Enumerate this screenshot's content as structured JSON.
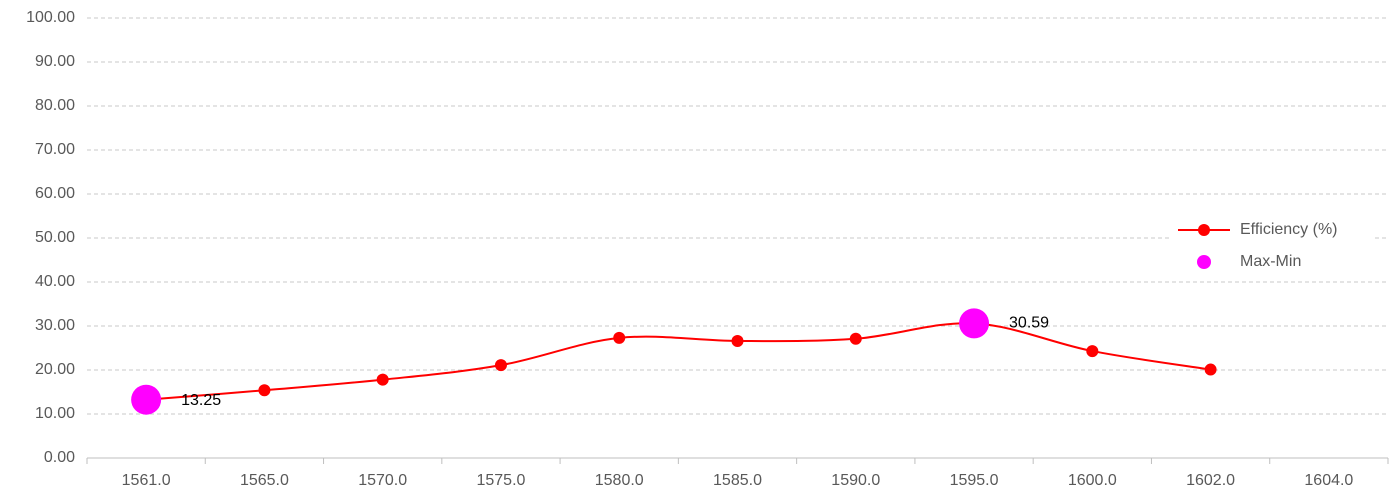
{
  "chart_data": {
    "type": "line",
    "categories": [
      "1561.0",
      "1565.0",
      "1570.0",
      "1575.0",
      "1580.0",
      "1585.0",
      "1590.0",
      "1595.0",
      "1600.0",
      "1602.0",
      "1604.0"
    ],
    "series": [
      {
        "name": "Efficiency (%)",
        "color": "#ff0000",
        "values": [
          13.25,
          15.4,
          17.8,
          21.1,
          27.3,
          26.6,
          27.1,
          30.59,
          24.3,
          20.1,
          null
        ]
      },
      {
        "name": "Max-Min",
        "color": "#ff00ff",
        "values": [
          13.25,
          null,
          null,
          null,
          null,
          null,
          null,
          30.59,
          null,
          null,
          null
        ],
        "value_labels": [
          "13.25",
          null,
          null,
          null,
          null,
          null,
          null,
          "30.59",
          null,
          null,
          null
        ]
      }
    ],
    "ylim": [
      0,
      100
    ],
    "yticks": [
      {
        "value": 0,
        "label": "0.00"
      },
      {
        "value": 10,
        "label": "10.00"
      },
      {
        "value": 20,
        "label": "20.00"
      },
      {
        "value": 30,
        "label": "30.00"
      },
      {
        "value": 40,
        "label": "40.00"
      },
      {
        "value": 50,
        "label": "50.00"
      },
      {
        "value": 60,
        "label": "60.00"
      },
      {
        "value": 70,
        "label": "70.00"
      },
      {
        "value": 80,
        "label": "80.00"
      },
      {
        "value": 90,
        "label": "90.00"
      },
      {
        "value": 100,
        "label": "100.00"
      }
    ],
    "grid": true,
    "legend": "right",
    "smooth": true
  }
}
